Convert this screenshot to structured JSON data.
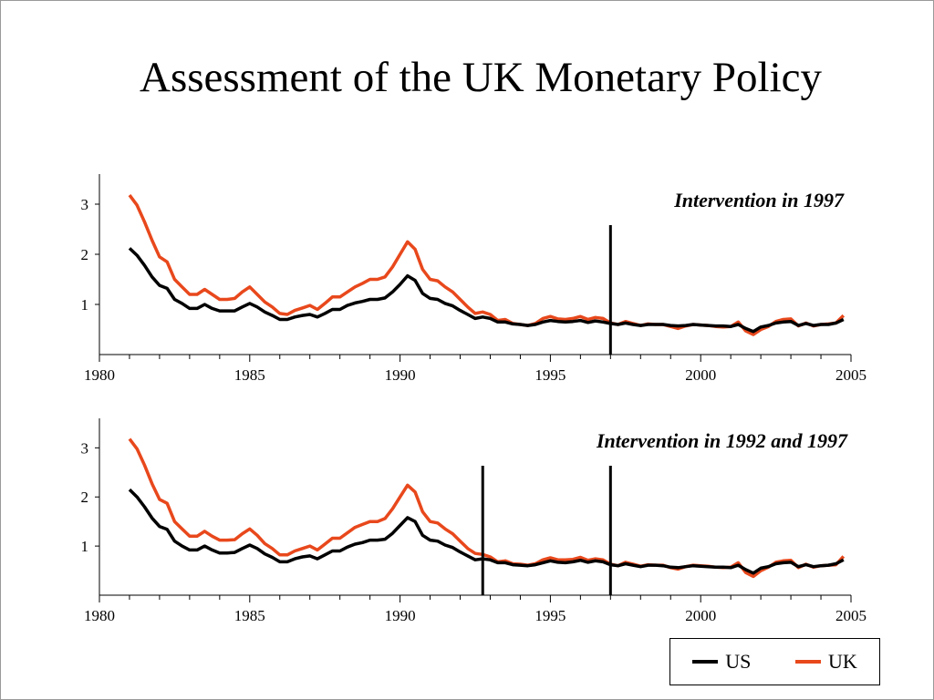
{
  "slide": {
    "title": "Assessment of the UK Monetary Policy"
  },
  "chart_data": [
    {
      "type": "line",
      "title": "",
      "annotation": "Intervention in 1997",
      "xlabel": "",
      "ylabel": "",
      "xlim": [
        1980,
        2005
      ],
      "ylim": [
        0,
        3.6
      ],
      "x_ticks": [
        1980,
        1985,
        1990,
        1995,
        2000,
        2005
      ],
      "y_ticks": [
        1,
        2,
        3
      ],
      "vlines": [
        1997
      ],
      "x": [
        1981.0,
        1981.25,
        1981.5,
        1981.75,
        1982.0,
        1982.25,
        1982.5,
        1982.75,
        1983.0,
        1983.25,
        1983.5,
        1983.75,
        1984.0,
        1984.25,
        1984.5,
        1984.75,
        1985.0,
        1985.25,
        1985.5,
        1985.75,
        1986.0,
        1986.25,
        1986.5,
        1986.75,
        1987.0,
        1987.25,
        1987.5,
        1987.75,
        1988.0,
        1988.25,
        1988.5,
        1988.75,
        1989.0,
        1989.25,
        1989.5,
        1989.75,
        1990.0,
        1990.25,
        1990.5,
        1990.75,
        1991.0,
        1991.25,
        1991.5,
        1991.75,
        1992.0,
        1992.25,
        1992.5,
        1992.75,
        1993.0,
        1993.25,
        1993.5,
        1993.75,
        1994.0,
        1994.25,
        1994.5,
        1994.75,
        1995.0,
        1995.25,
        1995.5,
        1995.75,
        1996.0,
        1996.25,
        1996.5,
        1996.75,
        1997.0,
        1997.25,
        1997.5,
        1997.75,
        1998.0,
        1998.25,
        1998.5,
        1998.75,
        1999.0,
        1999.25,
        1999.5,
        1999.75,
        2000.0,
        2000.25,
        2000.5,
        2000.75,
        2001.0,
        2001.25,
        2001.5,
        2001.75,
        2002.0,
        2002.25,
        2002.5,
        2002.75,
        2003.0,
        2003.25,
        2003.5,
        2003.75,
        2004.0,
        2004.25,
        2004.5,
        2004.75
      ],
      "series": [
        {
          "name": "US",
          "color": "#000000",
          "values": [
            2.12,
            1.98,
            1.78,
            1.55,
            1.38,
            1.32,
            1.1,
            1.02,
            0.92,
            0.92,
            1.0,
            0.92,
            0.87,
            0.87,
            0.87,
            0.95,
            1.02,
            0.95,
            0.85,
            0.78,
            0.7,
            0.7,
            0.75,
            0.78,
            0.8,
            0.75,
            0.82,
            0.9,
            0.9,
            0.98,
            1.03,
            1.06,
            1.1,
            1.1,
            1.13,
            1.25,
            1.4,
            1.57,
            1.48,
            1.22,
            1.12,
            1.1,
            1.02,
            0.97,
            0.88,
            0.8,
            0.72,
            0.75,
            0.72,
            0.65,
            0.65,
            0.61,
            0.6,
            0.58,
            0.6,
            0.65,
            0.68,
            0.66,
            0.65,
            0.66,
            0.68,
            0.64,
            0.67,
            0.65,
            0.62,
            0.6,
            0.63,
            0.6,
            0.58,
            0.6,
            0.6,
            0.6,
            0.58,
            0.57,
            0.58,
            0.6,
            0.59,
            0.58,
            0.57,
            0.57,
            0.56,
            0.6,
            0.52,
            0.46,
            0.55,
            0.58,
            0.63,
            0.65,
            0.66,
            0.58,
            0.62,
            0.58,
            0.6,
            0.6,
            0.63,
            0.7
          ]
        },
        {
          "name": "UK",
          "color": "#e8481c",
          "values": [
            3.18,
            2.98,
            2.65,
            2.28,
            1.95,
            1.85,
            1.5,
            1.35,
            1.2,
            1.2,
            1.3,
            1.2,
            1.1,
            1.1,
            1.12,
            1.25,
            1.35,
            1.2,
            1.05,
            0.95,
            0.82,
            0.8,
            0.88,
            0.93,
            0.98,
            0.9,
            1.02,
            1.15,
            1.15,
            1.25,
            1.35,
            1.42,
            1.5,
            1.5,
            1.55,
            1.75,
            2.0,
            2.25,
            2.1,
            1.7,
            1.5,
            1.47,
            1.35,
            1.25,
            1.1,
            0.95,
            0.82,
            0.85,
            0.8,
            0.68,
            0.7,
            0.62,
            0.6,
            0.58,
            0.62,
            0.72,
            0.76,
            0.71,
            0.7,
            0.72,
            0.76,
            0.7,
            0.74,
            0.72,
            0.63,
            0.6,
            0.66,
            0.62,
            0.58,
            0.61,
            0.6,
            0.6,
            0.56,
            0.52,
            0.57,
            0.6,
            0.59,
            0.58,
            0.56,
            0.55,
            0.56,
            0.65,
            0.47,
            0.4,
            0.5,
            0.56,
            0.66,
            0.7,
            0.71,
            0.57,
            0.63,
            0.57,
            0.6,
            0.61,
            0.63,
            0.78
          ]
        }
      ]
    },
    {
      "type": "line",
      "title": "",
      "annotation": "Intervention in 1992 and 1997",
      "xlabel": "",
      "ylabel": "",
      "xlim": [
        1980,
        2005
      ],
      "ylim": [
        0,
        3.6
      ],
      "x_ticks": [
        1980,
        1985,
        1990,
        1995,
        2000,
        2005
      ],
      "y_ticks": [
        1,
        2,
        3
      ],
      "vlines": [
        1992.75,
        1997
      ],
      "x": [
        1981.0,
        1981.25,
        1981.5,
        1981.75,
        1982.0,
        1982.25,
        1982.5,
        1982.75,
        1983.0,
        1983.25,
        1983.5,
        1983.75,
        1984.0,
        1984.25,
        1984.5,
        1984.75,
        1985.0,
        1985.25,
        1985.5,
        1985.75,
        1986.0,
        1986.25,
        1986.5,
        1986.75,
        1987.0,
        1987.25,
        1987.5,
        1987.75,
        1988.0,
        1988.25,
        1988.5,
        1988.75,
        1989.0,
        1989.25,
        1989.5,
        1989.75,
        1990.0,
        1990.25,
        1990.5,
        1990.75,
        1991.0,
        1991.25,
        1991.5,
        1991.75,
        1992.0,
        1992.25,
        1992.5,
        1992.75,
        1993.0,
        1993.25,
        1993.5,
        1993.75,
        1994.0,
        1994.25,
        1994.5,
        1994.75,
        1995.0,
        1995.25,
        1995.5,
        1995.75,
        1996.0,
        1996.25,
        1996.5,
        1996.75,
        1997.0,
        1997.25,
        1997.5,
        1997.75,
        1998.0,
        1998.25,
        1998.5,
        1998.75,
        1999.0,
        1999.25,
        1999.5,
        1999.75,
        2000.0,
        2000.25,
        2000.5,
        2000.75,
        2001.0,
        2001.25,
        2001.5,
        2001.75,
        2002.0,
        2002.25,
        2002.5,
        2002.75,
        2003.0,
        2003.25,
        2003.5,
        2003.75,
        2004.0,
        2004.25,
        2004.5,
        2004.75
      ],
      "series": [
        {
          "name": "US",
          "color": "#000000",
          "values": [
            2.15,
            2.0,
            1.8,
            1.57,
            1.4,
            1.34,
            1.1,
            1.0,
            0.92,
            0.92,
            1.0,
            0.92,
            0.86,
            0.86,
            0.87,
            0.95,
            1.02,
            0.95,
            0.84,
            0.77,
            0.68,
            0.68,
            0.74,
            0.78,
            0.8,
            0.74,
            0.82,
            0.9,
            0.9,
            0.98,
            1.04,
            1.07,
            1.12,
            1.12,
            1.14,
            1.26,
            1.42,
            1.58,
            1.5,
            1.22,
            1.12,
            1.1,
            1.02,
            0.97,
            0.88,
            0.8,
            0.72,
            0.74,
            0.72,
            0.66,
            0.66,
            0.62,
            0.61,
            0.6,
            0.62,
            0.66,
            0.7,
            0.67,
            0.66,
            0.68,
            0.71,
            0.67,
            0.7,
            0.68,
            0.62,
            0.6,
            0.64,
            0.61,
            0.58,
            0.61,
            0.61,
            0.6,
            0.57,
            0.56,
            0.58,
            0.6,
            0.59,
            0.58,
            0.57,
            0.57,
            0.56,
            0.61,
            0.52,
            0.45,
            0.55,
            0.58,
            0.64,
            0.66,
            0.67,
            0.58,
            0.62,
            0.58,
            0.6,
            0.61,
            0.64,
            0.72
          ]
        },
        {
          "name": "UK",
          "color": "#e8481c",
          "values": [
            3.18,
            2.98,
            2.65,
            2.27,
            1.95,
            1.87,
            1.5,
            1.35,
            1.2,
            1.2,
            1.3,
            1.2,
            1.12,
            1.12,
            1.13,
            1.25,
            1.35,
            1.22,
            1.05,
            0.95,
            0.82,
            0.82,
            0.9,
            0.95,
            1.0,
            0.92,
            1.04,
            1.16,
            1.16,
            1.27,
            1.38,
            1.44,
            1.5,
            1.5,
            1.56,
            1.76,
            2.0,
            2.24,
            2.1,
            1.7,
            1.5,
            1.47,
            1.35,
            1.25,
            1.1,
            0.95,
            0.85,
            0.83,
            0.78,
            0.68,
            0.7,
            0.64,
            0.63,
            0.61,
            0.64,
            0.72,
            0.76,
            0.72,
            0.72,
            0.73,
            0.77,
            0.71,
            0.74,
            0.72,
            0.63,
            0.6,
            0.67,
            0.63,
            0.59,
            0.62,
            0.61,
            0.61,
            0.56,
            0.53,
            0.58,
            0.61,
            0.6,
            0.59,
            0.57,
            0.56,
            0.57,
            0.66,
            0.46,
            0.38,
            0.5,
            0.57,
            0.67,
            0.7,
            0.71,
            0.56,
            0.63,
            0.57,
            0.6,
            0.61,
            0.62,
            0.79
          ]
        }
      ]
    }
  ],
  "legend": {
    "placement": "bottom-right",
    "items": [
      {
        "label": "US",
        "color": "#000000"
      },
      {
        "label": "UK",
        "color": "#e8481c"
      }
    ]
  }
}
